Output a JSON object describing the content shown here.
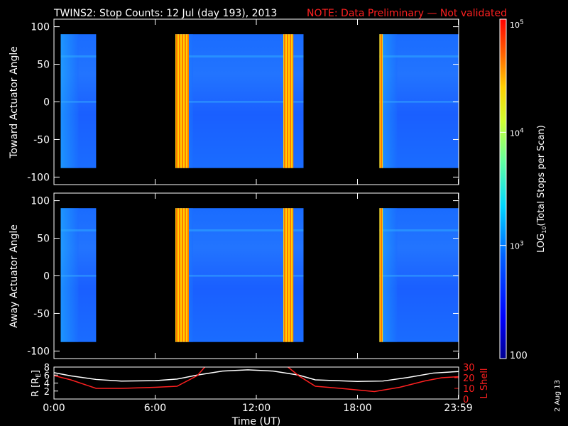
{
  "title": "TWINS2: Stop Counts: 12 Jul (day 193), 2013",
  "note": "NOTE: Data Preliminary — Not validated",
  "date_stamp": "2 Aug 13",
  "colors": {
    "note": "#ff2020",
    "background": "#000000",
    "r_line": "#ffffff",
    "l_line": "#ff2020"
  },
  "chart_data": [
    {
      "type": "heatmap",
      "ylabel": "Toward Actuator Angle",
      "ylim": [
        -110,
        110
      ],
      "yticks": [
        -100,
        -50,
        0,
        50,
        100
      ],
      "xlim": [
        0,
        24
      ],
      "data_blocks_hours": [
        [
          0.4,
          2.5
        ],
        [
          7.2,
          14.8
        ],
        [
          19.3,
          24.0
        ]
      ],
      "angle_range": [
        -88,
        90
      ],
      "bright_bands_hours": [
        [
          7.2,
          8.0
        ],
        [
          13.6,
          14.2
        ],
        [
          19.3,
          19.5
        ]
      ]
    },
    {
      "type": "heatmap",
      "ylabel": "Away Actuator Angle",
      "ylim": [
        -110,
        110
      ],
      "yticks": [
        -100,
        -50,
        0,
        50,
        100
      ],
      "xlim": [
        0,
        24
      ],
      "data_blocks_hours": [
        [
          0.4,
          2.5
        ],
        [
          7.2,
          14.8
        ],
        [
          19.3,
          24.0
        ]
      ],
      "angle_range": [
        -88,
        90
      ],
      "bright_bands_hours": [
        [
          7.2,
          8.0
        ],
        [
          13.6,
          14.2
        ],
        [
          19.3,
          19.5
        ]
      ]
    },
    {
      "type": "line",
      "xlabel": "Time (UT)",
      "x_ticks": [
        "0:00",
        "6:00",
        "12:00",
        "18:00",
        "23:59"
      ],
      "x_tick_hours": [
        0,
        6,
        12,
        18,
        23.98
      ],
      "left_axis": {
        "label": "R [RE]",
        "label_base": "R [R",
        "label_sub": "E",
        "label_close": "]",
        "ylim": [
          0,
          8
        ],
        "yticks": [
          2,
          4,
          6,
          8
        ]
      },
      "right_axis": {
        "label": "L Shell",
        "ylim": [
          0,
          30
        ],
        "yticks": [
          0,
          10,
          20,
          30
        ]
      },
      "series": [
        {
          "name": "R",
          "axis": "left",
          "x": [
            0,
            1,
            2.5,
            4,
            6,
            7.3,
            8.5,
            10,
            11.5,
            13,
            14.5,
            15.5,
            18,
            19.5,
            21,
            22.5,
            24
          ],
          "y": [
            6.6,
            5.8,
            4.9,
            4.5,
            4.6,
            5.0,
            6.0,
            7.0,
            7.3,
            7.0,
            6.0,
            4.8,
            4.4,
            4.5,
            5.4,
            6.5,
            6.9
          ]
        },
        {
          "name": "L Shell",
          "axis": "right",
          "x": [
            0,
            1,
            2.5,
            4,
            6,
            7.3,
            8.5,
            9.0,
            13.8,
            14.5,
            15.5,
            17,
            19,
            20.5,
            22,
            23,
            24
          ],
          "y": [
            22,
            18,
            10,
            10,
            11,
            12,
            22,
            31,
            31,
            22,
            12,
            10,
            7,
            11,
            17,
            20,
            21
          ]
        }
      ]
    }
  ],
  "colorbar": {
    "label": "LOG10(Total Stops per Scan)",
    "label_base": "LOG",
    "label_sub": "10",
    "label_rest": "(Total Stops per Scan)",
    "tick_top": "10",
    "tick_top_exp": "5",
    "tick_mid": "10",
    "tick_mid_exp": "4",
    "tick_low": "10",
    "tick_low_exp": "3",
    "tick_bottom": "100",
    "log_range": [
      2,
      5
    ]
  }
}
